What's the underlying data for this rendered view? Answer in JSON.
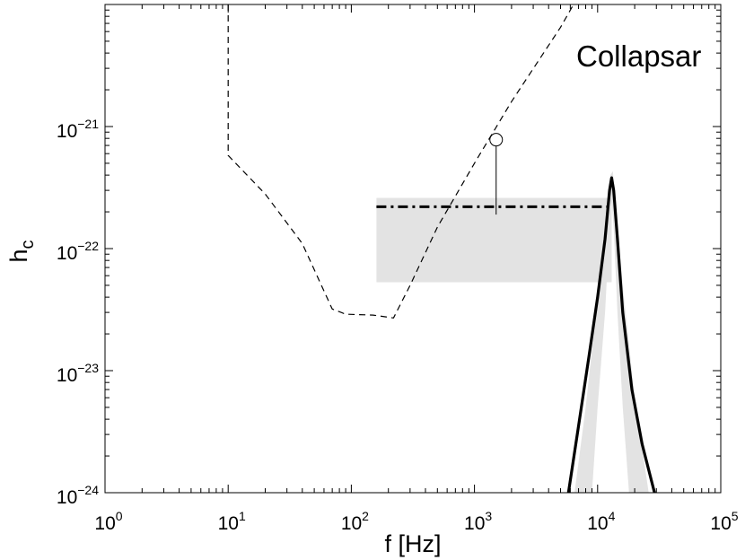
{
  "chart_data": {
    "type": "line",
    "title": "",
    "annotation": "Collapsar",
    "xlabel": "f [Hz]",
    "ylabel": "h",
    "ylabel_sub": "c",
    "xscale": "log",
    "yscale": "log",
    "xlim": [
      1,
      100000
    ],
    "ylim": [
      1e-24,
      1e-20
    ],
    "x_ticks": [
      {
        "value": 1,
        "base": "10",
        "exp": "0"
      },
      {
        "value": 10,
        "base": "10",
        "exp": "1"
      },
      {
        "value": 100,
        "base": "10",
        "exp": "2"
      },
      {
        "value": 1000,
        "base": "10",
        "exp": "3"
      },
      {
        "value": 10000,
        "base": "10",
        "exp": "4"
      },
      {
        "value": 100000,
        "base": "10",
        "exp": "5"
      }
    ],
    "y_ticks": [
      {
        "value": 1e-24,
        "base": "10",
        "exp": "−24"
      },
      {
        "value": 1e-23,
        "base": "10",
        "exp": "−23"
      },
      {
        "value": 1e-22,
        "base": "10",
        "exp": "−22"
      },
      {
        "value": 1e-21,
        "base": "10",
        "exp": "−21"
      }
    ],
    "grid": false,
    "series": [
      {
        "style": "dashed",
        "color": "#000000",
        "points": [
          [
            10,
            1e-20
          ],
          [
            10,
            5.8e-22
          ],
          [
            20,
            2.8e-22
          ],
          [
            40,
            1.1e-22
          ],
          [
            70,
            3.2e-23
          ],
          [
            90,
            2.9e-23
          ],
          [
            150,
            2.85e-23
          ],
          [
            220,
            2.7e-23
          ],
          [
            300,
            5e-23
          ],
          [
            500,
            1.5e-22
          ],
          [
            1000,
            5e-22
          ],
          [
            2000,
            1.6e-21
          ],
          [
            5000,
            6.5e-21
          ],
          [
            8000,
            1.5e-20
          ]
        ]
      },
      {
        "style": "dash-dot",
        "color": "#000000",
        "points": [
          [
            160,
            2.2e-22
          ],
          [
            13000,
            2.2e-22
          ]
        ]
      },
      {
        "style": "solid",
        "color": "#000000",
        "points": [
          [
            5800,
            1e-24
          ],
          [
            7000,
            3.5e-24
          ],
          [
            8500,
            1.3e-23
          ],
          [
            10000,
            4e-23
          ],
          [
            11500,
            1.2e-22
          ],
          [
            12500,
            3e-22
          ],
          [
            13000,
            3.8e-22
          ],
          [
            13500,
            3e-22
          ],
          [
            14500,
            1.2e-22
          ],
          [
            16000,
            3e-23
          ],
          [
            19000,
            7e-24
          ],
          [
            23000,
            2.5e-24
          ],
          [
            29000,
            1e-24
          ]
        ]
      }
    ],
    "shaded_regions": [
      {
        "kind": "band",
        "color": "#e3e3e3",
        "x": [
          160,
          13000
        ],
        "y": [
          5.3e-23,
          2.6e-22
        ]
      },
      {
        "kind": "polygon",
        "color": "#e3e3e3",
        "points": [
          [
            6500,
            1e-24
          ],
          [
            8000,
            5e-24
          ],
          [
            10000,
            4e-23
          ],
          [
            11500,
            1.3e-22
          ],
          [
            12700,
            4e-22
          ],
          [
            13300,
            4.3e-22
          ],
          [
            14000,
            2.2e-22
          ],
          [
            16000,
            5e-23
          ],
          [
            20000,
            6e-24
          ],
          [
            26000,
            1e-24
          ],
          [
            18000,
            1e-24
          ],
          [
            16000,
            5e-24
          ],
          [
            14500,
            3e-23
          ],
          [
            13500,
            1.5e-22
          ],
          [
            13000,
            2.5e-22
          ],
          [
            12500,
            1.5e-22
          ],
          [
            11500,
            3e-23
          ],
          [
            10000,
            5e-24
          ],
          [
            9000,
            1e-24
          ]
        ]
      }
    ],
    "markers": [
      {
        "shape": "open-circle",
        "x": 1500,
        "y": 7.8e-22,
        "stem_to_y": 1.9e-22
      }
    ]
  }
}
